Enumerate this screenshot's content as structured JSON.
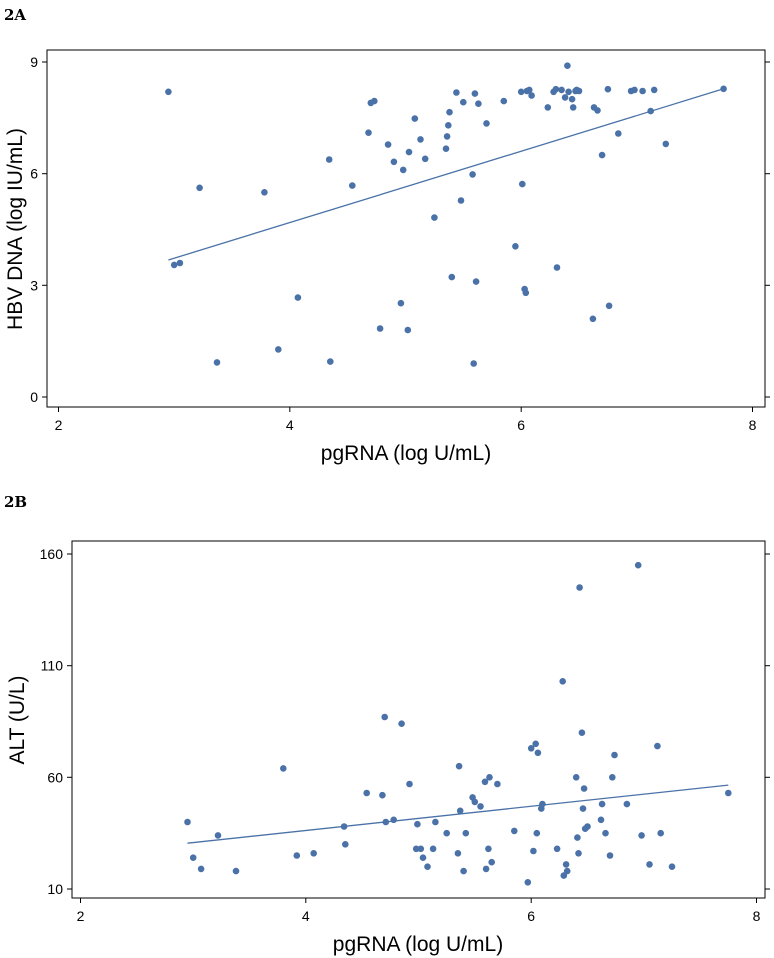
{
  "chart_data": [
    {
      "panel_label": "2A",
      "type": "scatter",
      "xlabel": "pgRNA (log U/mL)",
      "ylabel": "HBV DNA (log IU/mL)",
      "xlim": [
        2,
        8
      ],
      "ylim": [
        0,
        9
      ],
      "xticks": [
        "2",
        "4",
        "6",
        "8"
      ],
      "yticks": [
        "0",
        "3",
        "6",
        "9"
      ],
      "color": "#4a72a8",
      "fit_line": {
        "x": [
          2.95,
          7.75
        ],
        "y": [
          3.68,
          8.28
        ]
      },
      "points": [
        [
          2.95,
          8.2
        ],
        [
          3.0,
          3.55
        ],
        [
          3.05,
          3.6
        ],
        [
          3.22,
          5.62
        ],
        [
          3.37,
          0.93
        ],
        [
          3.78,
          5.5
        ],
        [
          3.9,
          1.28
        ],
        [
          4.07,
          2.67
        ],
        [
          4.34,
          6.38
        ],
        [
          4.35,
          0.95
        ],
        [
          4.54,
          5.68
        ],
        [
          4.68,
          7.1
        ],
        [
          4.7,
          7.9
        ],
        [
          4.73,
          7.95
        ],
        [
          4.78,
          1.84
        ],
        [
          4.85,
          6.78
        ],
        [
          4.9,
          6.32
        ],
        [
          4.96,
          2.52
        ],
        [
          4.98,
          6.1
        ],
        [
          5.02,
          1.8
        ],
        [
          5.03,
          6.58
        ],
        [
          5.08,
          7.48
        ],
        [
          5.13,
          6.92
        ],
        [
          5.17,
          6.4
        ],
        [
          5.25,
          4.82
        ],
        [
          5.35,
          6.67
        ],
        [
          5.36,
          7.0
        ],
        [
          5.37,
          7.3
        ],
        [
          5.38,
          7.65
        ],
        [
          5.4,
          3.22
        ],
        [
          5.44,
          8.18
        ],
        [
          5.48,
          5.28
        ],
        [
          5.5,
          7.92
        ],
        [
          5.58,
          5.98
        ],
        [
          5.59,
          0.9
        ],
        [
          5.6,
          8.15
        ],
        [
          5.61,
          3.1
        ],
        [
          5.63,
          7.88
        ],
        [
          5.7,
          7.35
        ],
        [
          5.85,
          7.95
        ],
        [
          5.95,
          4.05
        ],
        [
          6.0,
          8.2
        ],
        [
          6.01,
          5.72
        ],
        [
          6.03,
          2.9
        ],
        [
          6.04,
          2.8
        ],
        [
          6.05,
          8.22
        ],
        [
          6.07,
          8.25
        ],
        [
          6.09,
          8.1
        ],
        [
          6.23,
          7.78
        ],
        [
          6.28,
          8.2
        ],
        [
          6.3,
          8.27
        ],
        [
          6.31,
          3.48
        ],
        [
          6.35,
          8.25
        ],
        [
          6.38,
          8.05
        ],
        [
          6.4,
          8.9
        ],
        [
          6.41,
          8.2
        ],
        [
          6.44,
          8.0
        ],
        [
          6.45,
          7.78
        ],
        [
          6.47,
          8.22
        ],
        [
          6.48,
          8.25
        ],
        [
          6.5,
          8.22
        ],
        [
          6.62,
          2.1
        ],
        [
          6.63,
          7.78
        ],
        [
          6.66,
          7.7
        ],
        [
          6.7,
          6.5
        ],
        [
          6.75,
          8.27
        ],
        [
          6.76,
          2.45
        ],
        [
          6.84,
          7.08
        ],
        [
          6.95,
          8.22
        ],
        [
          6.98,
          8.25
        ],
        [
          7.05,
          8.22
        ],
        [
          7.12,
          7.68
        ],
        [
          7.15,
          8.25
        ],
        [
          7.25,
          6.8
        ],
        [
          7.75,
          8.28
        ]
      ]
    },
    {
      "panel_label": "2B",
      "type": "scatter",
      "xlabel": "pgRNA (log U/mL)",
      "ylabel": "ALT (U/L)",
      "xlim": [
        2,
        8
      ],
      "ylim": [
        10,
        160
      ],
      "xticks": [
        "2",
        "4",
        "6",
        "8"
      ],
      "yticks": [
        "10",
        "60",
        "110",
        "160"
      ],
      "color": "#4a72a8",
      "fit_line": {
        "x": [
          2.95,
          7.75
        ],
        "y": [
          30.5,
          56.5
        ]
      },
      "points": [
        [
          2.95,
          40
        ],
        [
          3.0,
          24
        ],
        [
          3.07,
          19
        ],
        [
          3.22,
          34
        ],
        [
          3.38,
          18
        ],
        [
          3.8,
          64
        ],
        [
          3.92,
          25
        ],
        [
          4.07,
          26
        ],
        [
          4.34,
          38
        ],
        [
          4.35,
          30
        ],
        [
          4.54,
          53
        ],
        [
          4.68,
          52
        ],
        [
          4.7,
          87
        ],
        [
          4.71,
          40
        ],
        [
          4.78,
          41
        ],
        [
          4.85,
          84
        ],
        [
          4.92,
          57
        ],
        [
          4.98,
          28
        ],
        [
          4.99,
          39
        ],
        [
          5.02,
          28
        ],
        [
          5.04,
          24
        ],
        [
          5.08,
          20
        ],
        [
          5.13,
          28
        ],
        [
          5.15,
          40
        ],
        [
          5.25,
          35
        ],
        [
          5.35,
          26
        ],
        [
          5.36,
          65
        ],
        [
          5.37,
          45
        ],
        [
          5.4,
          18
        ],
        [
          5.42,
          35
        ],
        [
          5.48,
          51
        ],
        [
          5.5,
          49
        ],
        [
          5.55,
          47
        ],
        [
          5.59,
          58
        ],
        [
          5.6,
          19
        ],
        [
          5.62,
          28
        ],
        [
          5.63,
          60
        ],
        [
          5.65,
          22
        ],
        [
          5.7,
          57
        ],
        [
          5.85,
          36
        ],
        [
          5.97,
          13
        ],
        [
          6.0,
          73
        ],
        [
          6.02,
          27
        ],
        [
          6.04,
          75
        ],
        [
          6.05,
          35
        ],
        [
          6.06,
          71
        ],
        [
          6.09,
          46
        ],
        [
          6.1,
          48
        ],
        [
          6.23,
          28
        ],
        [
          6.28,
          103
        ],
        [
          6.29,
          16
        ],
        [
          6.31,
          21
        ],
        [
          6.32,
          18
        ],
        [
          6.4,
          60
        ],
        [
          6.41,
          33
        ],
        [
          6.42,
          26
        ],
        [
          6.43,
          145
        ],
        [
          6.45,
          80
        ],
        [
          6.46,
          46
        ],
        [
          6.47,
          55
        ],
        [
          6.48,
          37
        ],
        [
          6.5,
          38
        ],
        [
          6.62,
          41
        ],
        [
          6.63,
          48
        ],
        [
          6.66,
          35
        ],
        [
          6.7,
          25
        ],
        [
          6.72,
          60
        ],
        [
          6.74,
          70
        ],
        [
          6.85,
          48
        ],
        [
          6.95,
          155
        ],
        [
          6.98,
          34
        ],
        [
          7.05,
          21
        ],
        [
          7.12,
          74
        ],
        [
          7.15,
          35
        ],
        [
          7.25,
          20
        ],
        [
          7.75,
          53
        ]
      ]
    }
  ]
}
